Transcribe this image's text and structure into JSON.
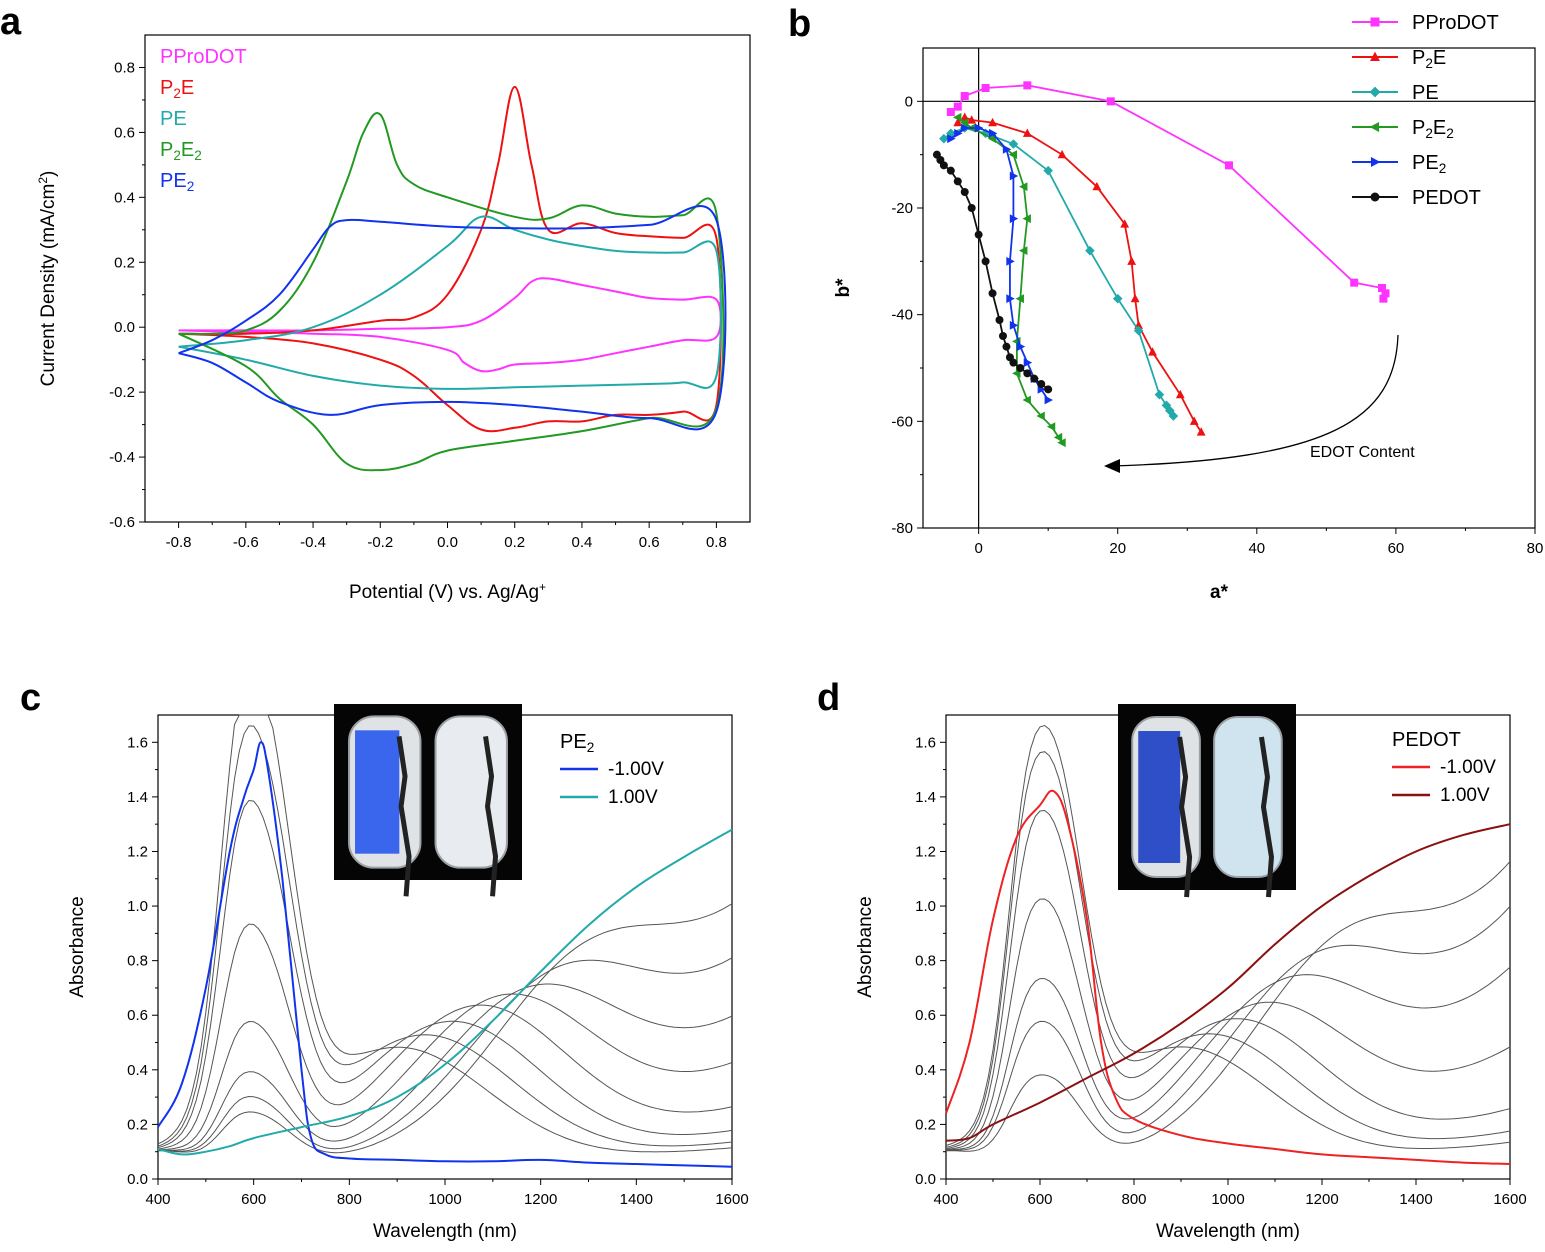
{
  "colors": {
    "PProDOT": "#ff33ff",
    "P2E": "#ee1111",
    "PE": "#22aaaa",
    "P2E2": "#229922",
    "PE2": "#1133ee",
    "PEDOT": "#111111",
    "gray": "#555555",
    "red_light": "#ee2222",
    "red_dark": "#8b1010"
  },
  "chart_data": [
    {
      "panel": "a",
      "type": "line",
      "xlabel": "Potential (V) vs. Ag/Ag",
      "xlabel_sup": "+",
      "ylabel": "Current Density (mA/cm",
      "ylabel_sup": "2",
      "ylabel_end": ")",
      "xlim": [
        -0.9,
        0.9
      ],
      "ylim": [
        -0.6,
        0.9
      ],
      "xticks": [
        "-0.8",
        "-0.6",
        "-0.4",
        "-0.2",
        "0.0",
        "0.2",
        "0.4",
        "0.6",
        "0.8"
      ],
      "yticks": [
        "-0.6",
        "-0.4",
        "-0.2",
        "0.0",
        "0.2",
        "0.4",
        "0.6",
        "0.8"
      ],
      "legend": [
        {
          "main": "PProDOT",
          "sub": "",
          "after": "",
          "color": "PProDOT"
        },
        {
          "main": "P",
          "sub": "2",
          "after": "E",
          "color": "P2E"
        },
        {
          "main": "PE",
          "sub": "",
          "after": "",
          "color": "PE"
        },
        {
          "main": "P",
          "sub": "2",
          "after": "E",
          "sub2": "2",
          "color": "P2E2"
        },
        {
          "main": "PE",
          "sub": "2",
          "after": "",
          "color": "PE2"
        }
      ],
      "series": [
        {
          "name": "PProDOT",
          "color": "PProDOT",
          "x": [
            -0.8,
            -0.6,
            -0.4,
            -0.2,
            0.0,
            0.1,
            0.2,
            0.25,
            0.3,
            0.4,
            0.5,
            0.6,
            0.7,
            0.8,
            0.8,
            0.7,
            0.6,
            0.5,
            0.4,
            0.3,
            0.2,
            0.15,
            0.1,
            0.05,
            0.0,
            -0.2,
            -0.4,
            -0.6,
            -0.8
          ],
          "y": [
            -0.01,
            -0.01,
            -0.01,
            -0.005,
            0.0,
            0.02,
            0.09,
            0.14,
            0.15,
            0.13,
            0.11,
            0.09,
            0.085,
            0.085,
            -0.03,
            -0.04,
            -0.06,
            -0.08,
            -0.1,
            -0.11,
            -0.115,
            -0.13,
            -0.135,
            -0.11,
            -0.07,
            -0.03,
            -0.02,
            -0.015,
            -0.01
          ]
        },
        {
          "name": "P2E",
          "color": "P2E",
          "x": [
            -0.8,
            -0.6,
            -0.4,
            -0.2,
            -0.1,
            0.0,
            0.1,
            0.15,
            0.2,
            0.25,
            0.3,
            0.4,
            0.5,
            0.6,
            0.7,
            0.8,
            0.8,
            0.7,
            0.6,
            0.5,
            0.4,
            0.3,
            0.2,
            0.1,
            0.0,
            -0.1,
            -0.2,
            -0.4,
            -0.6,
            -0.8
          ],
          "y": [
            -0.02,
            -0.02,
            -0.01,
            0.02,
            0.03,
            0.1,
            0.3,
            0.5,
            0.74,
            0.5,
            0.3,
            0.32,
            0.29,
            0.28,
            0.275,
            0.275,
            -0.24,
            -0.26,
            -0.27,
            -0.27,
            -0.29,
            -0.29,
            -0.31,
            -0.315,
            -0.24,
            -0.15,
            -0.1,
            -0.05,
            -0.03,
            -0.02
          ]
        },
        {
          "name": "PE",
          "color": "PE",
          "x": [
            -0.8,
            -0.6,
            -0.4,
            -0.2,
            0.0,
            0.1,
            0.2,
            0.3,
            0.4,
            0.5,
            0.6,
            0.7,
            0.8,
            0.8,
            0.7,
            0.6,
            0.4,
            0.2,
            0.0,
            -0.2,
            -0.4,
            -0.6,
            -0.8
          ],
          "y": [
            -0.06,
            -0.04,
            0.0,
            0.1,
            0.25,
            0.34,
            0.3,
            0.27,
            0.25,
            0.235,
            0.23,
            0.23,
            0.235,
            -0.15,
            -0.17,
            -0.175,
            -0.18,
            -0.185,
            -0.19,
            -0.18,
            -0.15,
            -0.1,
            -0.06
          ]
        },
        {
          "name": "P2E2",
          "color": "P2E2",
          "x": [
            -0.8,
            -0.7,
            -0.6,
            -0.5,
            -0.4,
            -0.3,
            -0.25,
            -0.2,
            -0.15,
            -0.1,
            0.0,
            0.2,
            0.3,
            0.4,
            0.5,
            0.6,
            0.7,
            0.8,
            0.8,
            0.6,
            0.4,
            0.2,
            0.0,
            -0.1,
            -0.2,
            -0.3,
            -0.4,
            -0.5,
            -0.6,
            -0.8
          ],
          "y": [
            -0.02,
            -0.02,
            -0.01,
            0.05,
            0.2,
            0.45,
            0.6,
            0.655,
            0.5,
            0.44,
            0.4,
            0.34,
            0.335,
            0.375,
            0.35,
            0.34,
            0.345,
            0.35,
            -0.25,
            -0.28,
            -0.32,
            -0.35,
            -0.38,
            -0.42,
            -0.44,
            -0.42,
            -0.3,
            -0.22,
            -0.12,
            -0.02
          ]
        },
        {
          "name": "PE2",
          "color": "PE2",
          "x": [
            -0.8,
            -0.7,
            -0.6,
            -0.5,
            -0.4,
            -0.35,
            -0.3,
            -0.2,
            0.0,
            0.2,
            0.4,
            0.6,
            0.8,
            0.8,
            0.6,
            0.4,
            0.2,
            0.0,
            -0.2,
            -0.35,
            -0.5,
            -0.6,
            -0.7,
            -0.8
          ],
          "y": [
            -0.08,
            -0.04,
            0.02,
            0.1,
            0.24,
            0.31,
            0.33,
            0.325,
            0.31,
            0.305,
            0.305,
            0.315,
            0.33,
            -0.26,
            -0.28,
            -0.26,
            -0.24,
            -0.23,
            -0.24,
            -0.27,
            -0.23,
            -0.17,
            -0.11,
            -0.08
          ]
        }
      ]
    },
    {
      "panel": "b",
      "type": "scatter",
      "xlabel": "a*",
      "ylabel": "b*",
      "xlim": [
        -8,
        80
      ],
      "ylim": [
        -80,
        10
      ],
      "xticks": [
        "0",
        "20",
        "40",
        "60",
        "80"
      ],
      "yticks": [
        "-80",
        "-60",
        "-40",
        "-20",
        "0"
      ],
      "annotation": "EDOT Content",
      "legend": [
        {
          "main": "PProDOT",
          "sub": "",
          "after": "",
          "color": "PProDOT",
          "marker": "square"
        },
        {
          "main": "P",
          "sub": "2",
          "after": "E",
          "color": "P2E",
          "marker": "triangle-up"
        },
        {
          "main": "PE",
          "sub": "",
          "after": "",
          "color": "PE",
          "marker": "diamond"
        },
        {
          "main": "P",
          "sub": "2",
          "after": "E",
          "sub2": "2",
          "color": "P2E2",
          "marker": "triangle-left"
        },
        {
          "main": "PE",
          "sub": "2",
          "after": "",
          "color": "PE2",
          "marker": "triangle-right"
        },
        {
          "main": "PEDOT",
          "sub": "",
          "after": "",
          "color": "PEDOT",
          "marker": "circle"
        }
      ],
      "series": [
        {
          "name": "PProDOT",
          "color": "PProDOT",
          "marker": "square",
          "x": [
            -4,
            -3,
            -2,
            1,
            7,
            19,
            36,
            54,
            58,
            58.5,
            58.2
          ],
          "y": [
            -2,
            -1,
            1,
            2.5,
            3,
            0,
            -12,
            -34,
            -35,
            -36,
            -37
          ]
        },
        {
          "name": "P2E",
          "color": "P2E",
          "x": [
            -3,
            -2,
            -1,
            2,
            7,
            12,
            17,
            21,
            22,
            22.5,
            23,
            25,
            29,
            31,
            32
          ],
          "y": [
            -4,
            -3,
            -3.5,
            -4,
            -6,
            -10,
            -16,
            -23,
            -30,
            -37,
            -42,
            -47,
            -55,
            -60,
            -62
          ],
          "marker": "triangle-up"
        },
        {
          "name": "PE",
          "color": "PE",
          "x": [
            -5,
            -4,
            -2,
            1,
            5,
            10,
            16,
            20,
            23,
            26,
            27,
            27.5,
            28
          ],
          "y": [
            -7,
            -6,
            -5,
            -6,
            -8,
            -13,
            -28,
            -37,
            -43,
            -55,
            -57,
            -58,
            -59
          ],
          "marker": "diamond"
        },
        {
          "name": "P2E2",
          "color": "P2E2",
          "x": [
            -3,
            -2,
            -1,
            2,
            5,
            6.5,
            7,
            6.5,
            6,
            5.5,
            5.5,
            7,
            9,
            10.5,
            11.5,
            12
          ],
          "y": [
            -3,
            -4,
            -5,
            -7,
            -10,
            -16,
            -22,
            -28,
            -37,
            -45,
            -51,
            -56,
            -59,
            -61,
            -63,
            -64
          ],
          "marker": "triangle-left"
        },
        {
          "name": "PE2",
          "color": "PE2",
          "x": [
            -4,
            -3,
            -2,
            0,
            2,
            4,
            5,
            5,
            4.5,
            4.5,
            5,
            6,
            7,
            8,
            9,
            10
          ],
          "y": [
            -7,
            -6,
            -5,
            -5,
            -6,
            -9,
            -14,
            -22,
            -30,
            -37,
            -42,
            -46,
            -49,
            -52,
            -54,
            -56
          ],
          "marker": "triangle-right"
        },
        {
          "name": "PEDOT",
          "color": "PEDOT",
          "x": [
            -6,
            -5.5,
            -5,
            -4,
            -3,
            -2,
            -1,
            0,
            1,
            2,
            3,
            3.5,
            4,
            4.5,
            5,
            6,
            7,
            8,
            9,
            10
          ],
          "y": [
            -10,
            -11,
            -12,
            -13,
            -15,
            -17,
            -20,
            -25,
            -30,
            -36,
            -41,
            -44,
            -46,
            -48,
            -49,
            -50,
            -51,
            -52,
            -53,
            -54
          ],
          "marker": "circle"
        }
      ]
    },
    {
      "panel": "c",
      "type": "line",
      "xlabel": "Wavelength (nm)",
      "ylabel": "Absorbance",
      "xlim": [
        400,
        1600
      ],
      "ylim": [
        0.0,
        1.7
      ],
      "xticks": [
        "400",
        "600",
        "800",
        "1000",
        "1200",
        "1400",
        "1600"
      ],
      "yticks": [
        "0.0",
        "0.2",
        "0.4",
        "0.6",
        "0.8",
        "1.0",
        "1.2",
        "1.4",
        "1.6"
      ],
      "legend_title": {
        "main": "PE",
        "sub": "2"
      },
      "legend": [
        {
          "label": "-1.00V",
          "color": "PE2"
        },
        {
          "label": "1.00V",
          "color": "PE"
        }
      ],
      "series": [
        {
          "name": "-1.00V",
          "color": "PE2",
          "x": [
            400,
            450,
            500,
            550,
            580,
            600,
            615,
            630,
            660,
            700,
            720,
            750,
            800,
            900,
            1000,
            1100,
            1200,
            1300,
            1400,
            1500,
            1600
          ],
          "y": [
            0.19,
            0.35,
            0.7,
            1.2,
            1.4,
            1.5,
            1.6,
            1.5,
            1.1,
            0.4,
            0.15,
            0.09,
            0.075,
            0.07,
            0.065,
            0.065,
            0.07,
            0.06,
            0.055,
            0.05,
            0.045
          ]
        },
        {
          "name": "1.00V",
          "color": "PE",
          "x": [
            400,
            450,
            500,
            550,
            600,
            700,
            800,
            900,
            1000,
            1100,
            1200,
            1300,
            1400,
            1500,
            1600
          ],
          "y": [
            0.11,
            0.09,
            0.1,
            0.12,
            0.15,
            0.19,
            0.23,
            0.3,
            0.42,
            0.58,
            0.76,
            0.93,
            1.07,
            1.18,
            1.28
          ]
        }
      ],
      "intermediate_spectra": {
        "color": "gray",
        "peak_vis": [
          1.55,
          1.38,
          1.16,
          0.77,
          0.46,
          0.3,
          0.22,
          0.17
        ],
        "peak_nir": [
          0.5,
          0.55,
          0.6,
          0.65,
          0.65,
          0.62,
          0.6,
          0.58
        ],
        "tail_1600": [
          0.06,
          0.08,
          0.12,
          0.2,
          0.35,
          0.5,
          0.68,
          0.83
        ]
      }
    },
    {
      "panel": "d",
      "type": "line",
      "xlabel": "Wavelength (nm)",
      "ylabel": "Absorbance",
      "xlim": [
        400,
        1600
      ],
      "ylim": [
        0.0,
        1.7
      ],
      "xticks": [
        "400",
        "600",
        "800",
        "1000",
        "1200",
        "1400",
        "1600"
      ],
      "yticks": [
        "0.0",
        "0.2",
        "0.4",
        "0.6",
        "0.8",
        "1.0",
        "1.2",
        "1.4",
        "1.6"
      ],
      "legend_title": {
        "main": "PEDOT",
        "sub": ""
      },
      "legend": [
        {
          "label": "-1.00V",
          "color": "red_light"
        },
        {
          "label": "1.00V",
          "color": "red_dark"
        }
      ],
      "series": [
        {
          "name": "-1.00V",
          "color": "red_light",
          "x": [
            400,
            450,
            500,
            550,
            600,
            630,
            660,
            700,
            730,
            760,
            800,
            900,
            1000,
            1100,
            1200,
            1300,
            1400,
            1500,
            1600
          ],
          "y": [
            0.24,
            0.5,
            0.95,
            1.25,
            1.37,
            1.42,
            1.3,
            0.95,
            0.5,
            0.3,
            0.22,
            0.16,
            0.13,
            0.11,
            0.09,
            0.08,
            0.07,
            0.06,
            0.055
          ]
        },
        {
          "name": "1.00V",
          "color": "red_dark",
          "x": [
            400,
            450,
            500,
            600,
            700,
            800,
            900,
            1000,
            1100,
            1200,
            1300,
            1400,
            1500,
            1600
          ],
          "y": [
            0.14,
            0.15,
            0.2,
            0.28,
            0.37,
            0.46,
            0.57,
            0.7,
            0.86,
            1.0,
            1.11,
            1.2,
            1.26,
            1.3
          ]
        }
      ],
      "intermediate_spectra": {
        "color": "gray",
        "peak_vis": [
          1.38,
          1.33,
          1.16,
          0.88,
          0.62,
          0.48,
          0.3
        ],
        "peak_nir": [
          0.5,
          0.55,
          0.6,
          0.62,
          0.64,
          0.64,
          0.62
        ],
        "tail_1600": [
          0.08,
          0.12,
          0.2,
          0.42,
          0.7,
          0.9,
          1.03
        ]
      }
    }
  ],
  "panels": {
    "a": "a",
    "b": "b",
    "c": "c",
    "d": "d"
  },
  "photos": {
    "c": {
      "left_color": "#3a66ee",
      "right_color": "#e8ecf0"
    },
    "d": {
      "left_color": "#2f4fc8",
      "right_color": "#cfe4ef"
    }
  }
}
